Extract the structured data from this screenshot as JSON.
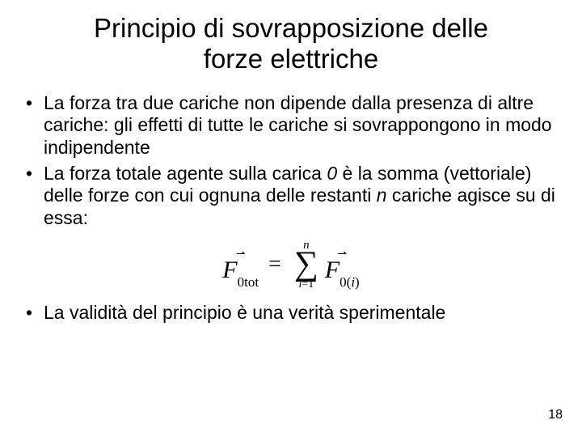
{
  "title_line1": "Principio di sovrapposizione delle",
  "title_line2": "forze elettriche",
  "bullets": {
    "b1": "La forza tra due cariche non dipende dalla presenza di altre cariche: gli effetti di tutte le cariche si sovrappongono in modo indipendente",
    "b2_pre": "La forza totale agente sulla carica ",
    "b2_zero": "0",
    "b2_mid": " è la somma (vettoriale) delle forze con cui ognuna delle restanti ",
    "b2_n": "n",
    "b2_post": " cariche agisce su di essa:",
    "b3": "La validità del principio è una verità sperimentale"
  },
  "formula": {
    "lhs_symbol": "F",
    "lhs_sub": "0tot",
    "sum_top": "n",
    "sum_bottom_var": "i",
    "sum_bottom_eq": "=1",
    "rhs_symbol": "F",
    "rhs_sub_pre": "0(",
    "rhs_sub_i": "i",
    "rhs_sub_post": ")"
  },
  "page_number": "18",
  "colors": {
    "text": "#000000",
    "background": "#ffffff"
  }
}
